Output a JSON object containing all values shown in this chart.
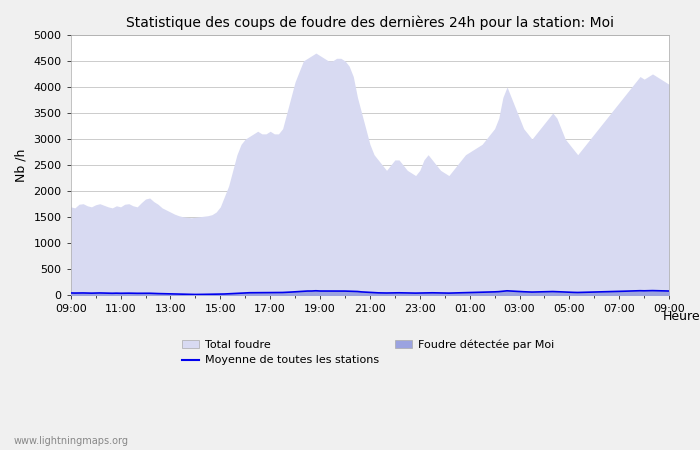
{
  "title": "Statistique des coups de foudre des dernières 24h pour la station: Moi",
  "xlabel": "Heure",
  "ylabel": "Nb /h",
  "ylim": [
    0,
    5000
  ],
  "yticks": [
    0,
    500,
    1000,
    1500,
    2000,
    2500,
    3000,
    3500,
    4000,
    4500,
    5000
  ],
  "xtick_labels": [
    "09:00",
    "11:00",
    "13:00",
    "15:00",
    "17:00",
    "19:00",
    "21:00",
    "23:00",
    "01:00",
    "03:00",
    "05:00",
    "07:00",
    "09:00"
  ],
  "bg_color": "#f0f0f0",
  "plot_bg_color": "#ffffff",
  "grid_color": "#cccccc",
  "fill_total_color": "#d8daf2",
  "fill_local_color": "#9ba3e0",
  "line_moyenne_color": "#0000ee",
  "watermark": "www.lightningmaps.org",
  "total_foudre": [
    1700,
    1680,
    1750,
    1760,
    1720,
    1700,
    1740,
    1760,
    1730,
    1700,
    1680,
    1720,
    1700,
    1750,
    1760,
    1720,
    1700,
    1780,
    1850,
    1870,
    1800,
    1750,
    1680,
    1640,
    1600,
    1560,
    1530,
    1510,
    1500,
    1490,
    1500,
    1510,
    1520,
    1530,
    1550,
    1600,
    1700,
    1900,
    2100,
    2400,
    2700,
    2900,
    3000,
    3050,
    3100,
    3150,
    3100,
    3100,
    3150,
    3100,
    3100,
    3200,
    3500,
    3800,
    4100,
    4300,
    4500,
    4550,
    4600,
    4650,
    4600,
    4550,
    4500,
    4500,
    4550,
    4550,
    4500,
    4400,
    4200,
    3800,
    3500,
    3200,
    2900,
    2700,
    2600,
    2500,
    2400,
    2500,
    2600,
    2600,
    2500,
    2400,
    2350,
    2300,
    2400,
    2600,
    2700,
    2600,
    2500,
    2400,
    2350,
    2300,
    2400,
    2500,
    2600,
    2700,
    2750,
    2800,
    2850,
    2900,
    3000,
    3100,
    3200,
    3400,
    3800,
    4000,
    3800,
    3600,
    3400,
    3200,
    3100,
    3000,
    3100,
    3200,
    3300,
    3400,
    3500,
    3400,
    3200,
    3000,
    2900,
    2800,
    2700,
    2800,
    2900,
    3000,
    3100,
    3200,
    3300,
    3400,
    3500,
    3600,
    3700,
    3800,
    3900,
    4000,
    4100,
    4200,
    4150,
    4200,
    4250,
    4200,
    4150,
    4100,
    4050
  ],
  "local_foudre": [
    50,
    48,
    50,
    50,
    48,
    45,
    48,
    50,
    48,
    45,
    44,
    46,
    44,
    45,
    46,
    44,
    43,
    44,
    44,
    44,
    40,
    38,
    36,
    35,
    33,
    30,
    28,
    26,
    24,
    22,
    20,
    20,
    22,
    24,
    25,
    26,
    28,
    30,
    35,
    40,
    45,
    50,
    55,
    57,
    58,
    60,
    58,
    60,
    60,
    60,
    60,
    62,
    65,
    70,
    75,
    80,
    85,
    90,
    90,
    95,
    90,
    90,
    88,
    88,
    90,
    90,
    88,
    85,
    82,
    78,
    70,
    65,
    60,
    55,
    52,
    50,
    48,
    50,
    52,
    52,
    50,
    48,
    47,
    46,
    48,
    52,
    54,
    52,
    50,
    48,
    47,
    46,
    48,
    50,
    52,
    54,
    56,
    58,
    60,
    62,
    65,
    68,
    70,
    74,
    82,
    90,
    85,
    80,
    76,
    72,
    68,
    66,
    68,
    70,
    72,
    74,
    76,
    74,
    70,
    66,
    62,
    60,
    58,
    60,
    62,
    65,
    68,
    70,
    72,
    74,
    76,
    78,
    80,
    82,
    85,
    88,
    90,
    92,
    90,
    92,
    94,
    92,
    90,
    88,
    86
  ],
  "moyenne": [
    48,
    46,
    48,
    48,
    46,
    44,
    46,
    48,
    46,
    44,
    42,
    44,
    42,
    43,
    44,
    42,
    41,
    42,
    42,
    42,
    38,
    36,
    34,
    33,
    31,
    28,
    26,
    24,
    22,
    21,
    19,
    19,
    21,
    23,
    24,
    25,
    26,
    28,
    32,
    38,
    42,
    46,
    50,
    52,
    53,
    55,
    53,
    55,
    55,
    55,
    55,
    57,
    60,
    65,
    70,
    75,
    80,
    85,
    85,
    90,
    85,
    85,
    84,
    84,
    86,
    86,
    84,
    82,
    80,
    76,
    68,
    63,
    58,
    53,
    50,
    48,
    47,
    49,
    51,
    51,
    49,
    47,
    46,
    45,
    47,
    51,
    53,
    51,
    49,
    47,
    46,
    45,
    47,
    49,
    51,
    53,
    55,
    57,
    59,
    61,
    64,
    67,
    69,
    73,
    81,
    89,
    84,
    79,
    75,
    71,
    67,
    65,
    67,
    69,
    71,
    73,
    75,
    73,
    69,
    65,
    61,
    59,
    57,
    59,
    61,
    64,
    67,
    69,
    71,
    73,
    75,
    77,
    79,
    81,
    84,
    87,
    89,
    91,
    89,
    91,
    93,
    91,
    89,
    87,
    85
  ]
}
